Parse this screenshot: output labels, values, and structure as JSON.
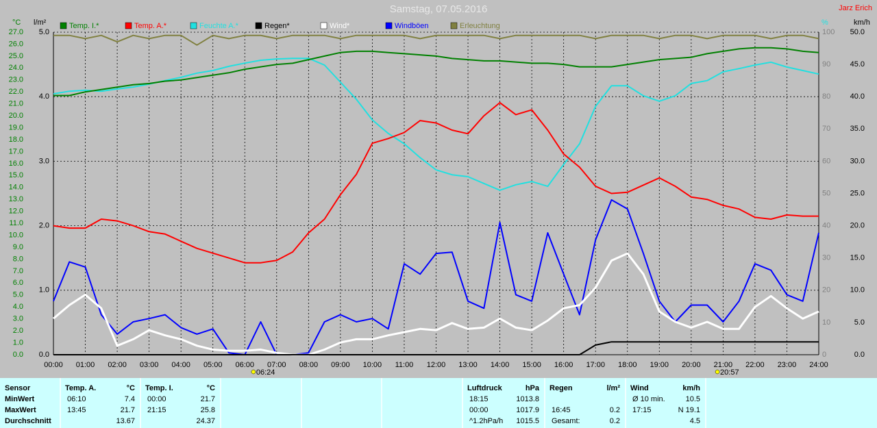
{
  "chart_data": {
    "type": "line",
    "title": "Samstag, 07.05.2016",
    "author": "Jarz Erich",
    "ylabel": "°C",
    "y2label": "km/h",
    "y3label": "%",
    "y4label": "l/m²",
    "xlim": [
      0,
      24
    ],
    "xticks": [
      {
        "value": 0,
        "label": "00:00"
      },
      {
        "value": 1,
        "label": "01:00"
      },
      {
        "value": 2,
        "label": "02:00"
      },
      {
        "value": 3,
        "label": "03:00"
      },
      {
        "value": 4,
        "label": "04:00"
      },
      {
        "value": 5,
        "label": "05:00"
      },
      {
        "value": 6,
        "label": "06:00"
      },
      {
        "value": 7,
        "label": "07:00"
      },
      {
        "value": 8,
        "label": "08:00"
      },
      {
        "value": 9,
        "label": "09:00"
      },
      {
        "value": 10,
        "label": "10:00"
      },
      {
        "value": 11,
        "label": "11:00"
      },
      {
        "value": 12,
        "label": "12:00"
      },
      {
        "value": 13,
        "label": "13:00"
      },
      {
        "value": 14,
        "label": "14:00"
      },
      {
        "value": 15,
        "label": "15:00"
      },
      {
        "value": 16,
        "label": "16:00"
      },
      {
        "value": 17,
        "label": "17:00"
      },
      {
        "value": 18,
        "label": "18:00"
      },
      {
        "value": 19,
        "label": "19:00"
      },
      {
        "value": 20,
        "label": "20:00"
      },
      {
        "value": 21,
        "label": "21:00"
      },
      {
        "value": 22,
        "label": "22:00"
      },
      {
        "value": 23,
        "label": "23:00"
      },
      {
        "value": 24,
        "label": "24:00"
      }
    ],
    "ylim": [
      0,
      27
    ],
    "yticks": [
      {
        "value": 0,
        "label": "0.0"
      },
      {
        "value": 1,
        "label": "1.0"
      },
      {
        "value": 2,
        "label": "2.0"
      },
      {
        "value": 3,
        "label": "3.0"
      },
      {
        "value": 4,
        "label": "4.0"
      },
      {
        "value": 5,
        "label": "5.0"
      },
      {
        "value": 6,
        "label": "6.0"
      },
      {
        "value": 7,
        "label": "7.0"
      },
      {
        "value": 8,
        "label": "8.0"
      },
      {
        "value": 9,
        "label": "9.0"
      },
      {
        "value": 10,
        "label": "10.0"
      },
      {
        "value": 11,
        "label": "11.0"
      },
      {
        "value": 12,
        "label": "12.0"
      },
      {
        "value": 13,
        "label": "13.0"
      },
      {
        "value": 14,
        "label": "14.0"
      },
      {
        "value": 15,
        "label": "15.0"
      },
      {
        "value": 16,
        "label": "16.0"
      },
      {
        "value": 17,
        "label": "17.0"
      },
      {
        "value": 18,
        "label": "18.0"
      },
      {
        "value": 19,
        "label": "19.0"
      },
      {
        "value": 20,
        "label": "20.0"
      },
      {
        "value": 21,
        "label": "21.0"
      },
      {
        "value": 22,
        "label": "22.0"
      },
      {
        "value": 23,
        "label": "23.0"
      },
      {
        "value": 24,
        "label": "24.0"
      },
      {
        "value": 25,
        "label": "25.0"
      },
      {
        "value": 26,
        "label": "26.0"
      },
      {
        "value": 27,
        "label": "27.0"
      }
    ],
    "y2lim": [
      0,
      50
    ],
    "y2ticks": [
      {
        "value": 0,
        "label": "0.0"
      },
      {
        "value": 5,
        "label": "5.0"
      },
      {
        "value": 10,
        "label": "10.0"
      },
      {
        "value": 15,
        "label": "15.0"
      },
      {
        "value": 20,
        "label": "20.0"
      },
      {
        "value": 25,
        "label": "25.0"
      },
      {
        "value": 30,
        "label": "30.0"
      },
      {
        "value": 35,
        "label": "35.0"
      },
      {
        "value": 40,
        "label": "40.0"
      },
      {
        "value": 45,
        "label": "45.0"
      },
      {
        "value": 50,
        "label": "50.0"
      }
    ],
    "y3lim": [
      0,
      100
    ],
    "y3ticks": [
      0,
      10,
      20,
      30,
      40,
      50,
      60,
      70,
      80,
      90,
      100
    ],
    "y4lim": [
      0,
      5
    ],
    "y4ticks": [
      {
        "value": 0,
        "label": "0.0"
      },
      {
        "value": 1,
        "label": "1.0"
      },
      {
        "value": 2,
        "label": "2.0"
      },
      {
        "value": 3,
        "label": "3.0"
      },
      {
        "value": 4,
        "label": "4.0"
      },
      {
        "value": 5,
        "label": "5.0"
      }
    ],
    "grid": true,
    "x": [
      0,
      0.5,
      1,
      1.5,
      2,
      2.5,
      3,
      3.5,
      4,
      4.5,
      5,
      5.5,
      6,
      6.5,
      7,
      7.5,
      8,
      8.5,
      9,
      9.5,
      10,
      10.5,
      11,
      11.5,
      12,
      12.5,
      13,
      13.5,
      14,
      14.5,
      15,
      15.5,
      16,
      16.5,
      17,
      17.5,
      18,
      18.5,
      19,
      19.5,
      20,
      20.5,
      21,
      21.5,
      22,
      22.5,
      23,
      23.5,
      24
    ],
    "series": [
      {
        "name": "Temp. I.*",
        "color": "#008000",
        "axis": "y",
        "values": [
          21.7,
          21.7,
          22.0,
          22.2,
          22.4,
          22.6,
          22.7,
          22.9,
          23.0,
          23.2,
          23.4,
          23.6,
          23.9,
          24.1,
          24.3,
          24.4,
          24.7,
          25.0,
          25.3,
          25.4,
          25.4,
          25.3,
          25.2,
          25.1,
          25.0,
          24.8,
          24.7,
          24.6,
          24.6,
          24.5,
          24.4,
          24.4,
          24.3,
          24.1,
          24.1,
          24.1,
          24.3,
          24.5,
          24.7,
          24.8,
          24.9,
          25.2,
          25.4,
          25.6,
          25.7,
          25.7,
          25.6,
          25.4,
          25.3
        ]
      },
      {
        "name": "Temp. A.*",
        "color": "#ff0000",
        "axis": "y",
        "values": [
          10.8,
          10.6,
          10.6,
          11.35,
          11.2,
          10.8,
          10.3,
          10.1,
          9.5,
          8.9,
          8.5,
          8.1,
          7.7,
          7.7,
          7.9,
          8.6,
          10.2,
          11.35,
          13.4,
          15.1,
          17.7,
          18.1,
          18.6,
          19.6,
          19.4,
          18.8,
          18.5,
          20.0,
          21.1,
          20.1,
          20.5,
          18.8,
          16.8,
          15.7,
          14.1,
          13.5,
          13.6,
          14.2,
          14.8,
          14.1,
          13.2,
          13.0,
          12.5,
          12.2,
          11.5,
          11.35,
          11.7,
          11.6,
          11.6
        ]
      },
      {
        "name": "Feuchte A.*",
        "color": "#20e0e0",
        "axis": "y3",
        "values": [
          80.9,
          81.7,
          82,
          81.7,
          82.4,
          83,
          83.9,
          85,
          86,
          87.3,
          88.1,
          89.4,
          90.4,
          91.3,
          91.7,
          91.9,
          91.9,
          89.8,
          84.5,
          79.2,
          72.8,
          68.6,
          65.4,
          61.1,
          57.3,
          55.8,
          55.2,
          53.1,
          51,
          52.7,
          53.7,
          52.2,
          59,
          65.4,
          77,
          83.4,
          83.4,
          80.3,
          78.6,
          80.3,
          84.1,
          85,
          87.7,
          88.7,
          89.8,
          90.7,
          89.2,
          88.1,
          87
        ]
      },
      {
        "name": "Regen*",
        "color": "#000000",
        "axis": "y4",
        "values": [
          0,
          0,
          0,
          0,
          0,
          0,
          0,
          0,
          0,
          0,
          0,
          0,
          0,
          0,
          0,
          0,
          0,
          0,
          0,
          0,
          0,
          0,
          0,
          0,
          0,
          0,
          0,
          0,
          0,
          0,
          0,
          0,
          0,
          0,
          0.15,
          0.2,
          0.2,
          0.2,
          0.2,
          0.2,
          0.2,
          0.2,
          0.2,
          0.2,
          0.2,
          0.2,
          0.2,
          0.2,
          0.2
        ]
      },
      {
        "name": "Wind*",
        "color": "#ffffff",
        "axis": "y2",
        "values": [
          5.6,
          7.7,
          9.3,
          7.2,
          1.4,
          2.4,
          3.8,
          3.0,
          2.4,
          1.4,
          0.8,
          0.6,
          0.6,
          0.8,
          0.3,
          0,
          0,
          0.8,
          1.9,
          2.4,
          2.4,
          3.0,
          3.5,
          4.0,
          3.8,
          4.9,
          4.0,
          4.2,
          5.6,
          4.2,
          3.8,
          5.3,
          7.2,
          7.7,
          10.4,
          14.6,
          15.7,
          12.5,
          6.7,
          5.1,
          4.2,
          5.1,
          4.0,
          4.0,
          7.4,
          9.1,
          7.2,
          5.6,
          6.7
        ]
      },
      {
        "name": "Windböen",
        "color": "#0000ff",
        "axis": "y2",
        "values": [
          8.3,
          14.4,
          13.6,
          6.2,
          3.2,
          5.1,
          5.6,
          6.2,
          4.2,
          3.2,
          4.0,
          0.3,
          0,
          5.1,
          0,
          0,
          0.3,
          5.1,
          6.2,
          5.1,
          5.6,
          4.0,
          14.1,
          12.5,
          15.7,
          15.9,
          8.3,
          7.2,
          20.5,
          9.3,
          8.3,
          18.9,
          12.5,
          6.2,
          17.8,
          24.0,
          22.6,
          15.7,
          8.3,
          5.1,
          7.7,
          7.7,
          5.1,
          8.3,
          14.1,
          13.1,
          9.3,
          8.3,
          18.9
        ]
      },
      {
        "name": "Erleuchtung",
        "color": "#808040",
        "axis": "y3",
        "values": [
          99,
          99,
          98,
          99,
          97,
          99,
          98,
          99,
          99,
          96,
          99,
          98,
          99,
          99,
          98,
          99,
          99,
          99,
          98,
          99,
          99,
          99,
          99,
          98,
          99,
          99,
          99,
          99,
          98,
          99,
          99,
          99,
          99,
          99,
          98,
          99,
          99,
          99,
          98,
          99,
          99,
          98,
          99,
          99,
          99,
          98,
          99,
          99,
          98
        ]
      }
    ],
    "annotations": [
      {
        "label": "06:24"
      },
      {
        "label": "20:57"
      }
    ]
  },
  "summary": {
    "row_labels": [
      "Sensor",
      "MinWert",
      "MaxWert",
      "Durchschnitt"
    ],
    "sections": [
      {
        "header": "Temp. A.",
        "unit": "°C",
        "rows": [
          {
            "time": "06:10",
            "value": "7.4"
          },
          {
            "time": "13:45",
            "value": "21.7"
          },
          {
            "value": "13.67"
          }
        ]
      },
      {
        "header": "Temp. I.",
        "unit": "°C",
        "rows": [
          {
            "time": "00:00",
            "value": "21.7"
          },
          {
            "time": "21:15",
            "value": "25.8"
          },
          {
            "value": "24.37"
          }
        ]
      },
      {
        "header": "Luftdruck",
        "unit": "hPa",
        "rows": [
          {
            "time": "18:15",
            "value": "1013.8"
          },
          {
            "time": "00:00",
            "value": "1017.9"
          },
          {
            "time": "^1.2hPa/h",
            "value": "1015.5"
          }
        ]
      },
      {
        "header": "Regen",
        "unit": "l/m²",
        "rows": [
          null,
          {
            "time": "16:45",
            "value": "0.2"
          },
          {
            "time": "Gesamt:",
            "value": "0.2"
          }
        ]
      },
      {
        "header": "Wind",
        "unit": "km/h",
        "rows": [
          {
            "time": "Ø 10 min.",
            "value": "10.5"
          },
          {
            "time": "17:15",
            "value": "N 19.1"
          },
          {
            "value": "4.5"
          }
        ]
      }
    ]
  }
}
